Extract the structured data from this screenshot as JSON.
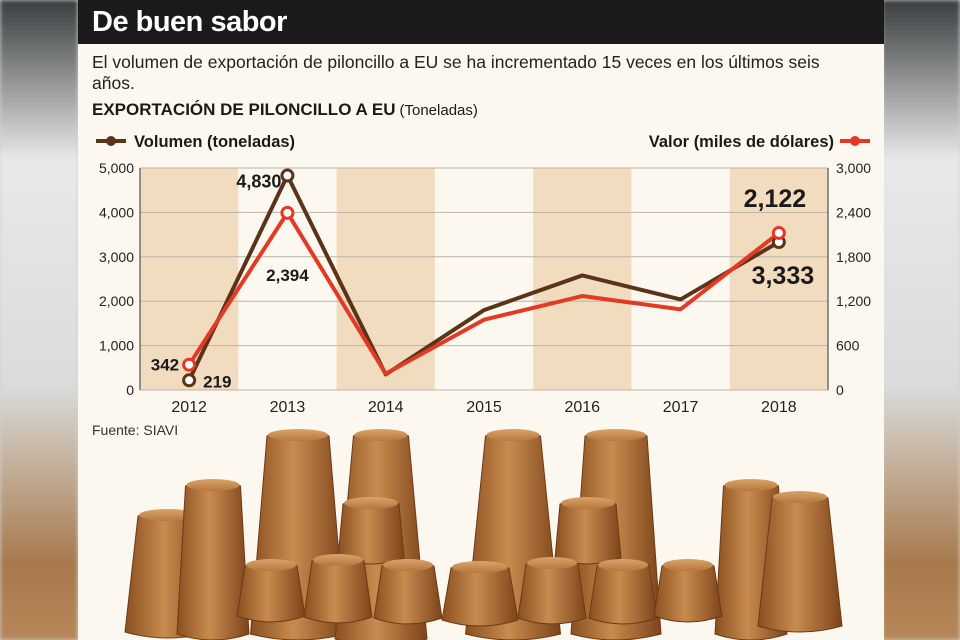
{
  "header": {
    "title": "De buen sabor"
  },
  "subtitle": "El volumen de exportación de piloncillo a EU se ha incrementado 15 veces en los últimos seis años.",
  "chart_heading": {
    "title": "EXPORTACIÓN DE PILONCILLO A EU",
    "unit": "(Toneladas)"
  },
  "source": "Fuente: SIAVI",
  "colors": {
    "volume": "#5a3418",
    "value": "#e23a25",
    "band": "#f2dcc0",
    "grid": "#b9b3aa"
  },
  "chart_data": {
    "type": "line",
    "categories": [
      "2012",
      "2013",
      "2014",
      "2015",
      "2016",
      "2017",
      "2018"
    ],
    "series": [
      {
        "name": "Volumen (toneladas)",
        "axis": "left",
        "values": [
          219,
          4830,
          350,
          1800,
          2580,
          2040,
          3333
        ]
      },
      {
        "name": "Valor (miles de dólares)",
        "axis": "right",
        "values": [
          342,
          2394,
          220,
          950,
          1270,
          1090,
          2122
        ]
      }
    ],
    "y_left": {
      "ticks": [
        "0",
        "1,000",
        "2,000",
        "3,000",
        "4,000",
        "5,000"
      ],
      "ylim": [
        0,
        5000
      ]
    },
    "y_right": {
      "ticks": [
        "0",
        "600",
        "1,200",
        "1,800",
        "2,400",
        "3,000"
      ],
      "ylim": [
        0,
        3000
      ]
    },
    "data_labels": [
      {
        "series": 0,
        "index": 0,
        "text": "219"
      },
      {
        "series": 0,
        "index": 1,
        "text": "4,830"
      },
      {
        "series": 0,
        "index": 6,
        "text": "3,333"
      },
      {
        "series": 1,
        "index": 0,
        "text": "342"
      },
      {
        "series": 1,
        "index": 1,
        "text": "2,394"
      },
      {
        "series": 1,
        "index": 6,
        "text": "2,122"
      }
    ],
    "grid": true,
    "legend": "top"
  }
}
